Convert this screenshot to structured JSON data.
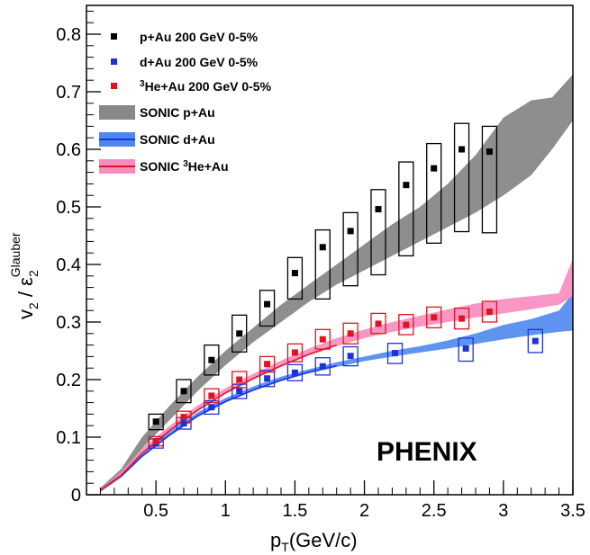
{
  "chart_data": {
    "type": "scatter",
    "title": "",
    "watermark": "PHENIX",
    "xlabel": {
      "main": "p",
      "sub": "T",
      "rest": "(GeV/c)"
    },
    "ylabel": {
      "v": "v",
      "vsub": "2",
      "sep": " / ",
      "eps": "ε",
      "epssub": "2",
      "epssup": "Glauber"
    },
    "xlim": [
      0,
      3.5
    ],
    "ylim": [
      0,
      0.85
    ],
    "xticks": [
      0.5,
      1,
      1.5,
      2,
      2.5,
      3,
      3.5
    ],
    "xtick_labels": [
      "0.5",
      "1",
      "1.5",
      "2",
      "2.5",
      "3",
      "3.5"
    ],
    "yticks": [
      0,
      0.1,
      0.2,
      0.3,
      0.4,
      0.5,
      0.6,
      0.7,
      0.8
    ],
    "ytick_labels": [
      "0",
      "0.1",
      "0.2",
      "0.3",
      "0.4",
      "0.5",
      "0.6",
      "0.7",
      "0.8"
    ],
    "legend_position": "top-left",
    "grid": false,
    "series": [
      {
        "name": "p+Au 200 GeV 0-5%",
        "color": "#000000",
        "x": [
          0.5,
          0.7,
          0.9,
          1.1,
          1.3,
          1.5,
          1.7,
          1.9,
          2.1,
          2.3,
          2.5,
          2.7,
          2.9
        ],
        "y": [
          0.127,
          0.18,
          0.234,
          0.28,
          0.331,
          0.385,
          0.43,
          0.458,
          0.496,
          0.538,
          0.567,
          0.6,
          0.596
        ],
        "sys_low": [
          0.113,
          0.16,
          0.208,
          0.248,
          0.293,
          0.34,
          0.34,
          0.363,
          0.382,
          0.415,
          0.437,
          0.457,
          0.455
        ],
        "sys_high": [
          0.14,
          0.2,
          0.26,
          0.312,
          0.355,
          0.412,
          0.46,
          0.49,
          0.53,
          0.578,
          0.61,
          0.645,
          0.64
        ]
      },
      {
        "name": "d+Au 200 GeV 0-5%",
        "color": "#1e32dc",
        "x": [
          0.5,
          0.7,
          0.9,
          1.1,
          1.3,
          1.5,
          1.7,
          1.9,
          2.22,
          2.73,
          3.23
        ],
        "y": [
          0.089,
          0.124,
          0.152,
          0.18,
          0.202,
          0.212,
          0.223,
          0.241,
          0.246,
          0.254,
          0.267
        ],
        "sys_low": [
          0.081,
          0.114,
          0.14,
          0.167,
          0.188,
          0.198,
          0.208,
          0.224,
          0.228,
          0.232,
          0.247
        ],
        "sys_high": [
          0.097,
          0.134,
          0.163,
          0.192,
          0.216,
          0.226,
          0.238,
          0.257,
          0.263,
          0.272,
          0.287
        ]
      },
      {
        "name": "³He+Au 200 GeV 0-5%",
        "legend_pre": "3",
        "legend_text": "He+Au 200 GeV 0-5%",
        "color": "#e1141e",
        "x": [
          0.5,
          0.7,
          0.9,
          1.1,
          1.3,
          1.5,
          1.7,
          1.9,
          2.1,
          2.3,
          2.5,
          2.7,
          2.9
        ],
        "y": [
          0.093,
          0.135,
          0.172,
          0.2,
          0.227,
          0.247,
          0.27,
          0.28,
          0.297,
          0.295,
          0.308,
          0.306,
          0.318
        ],
        "sys_low": [
          0.085,
          0.125,
          0.16,
          0.186,
          0.213,
          0.231,
          0.253,
          0.262,
          0.28,
          0.278,
          0.29,
          0.288,
          0.3
        ],
        "sys_high": [
          0.101,
          0.145,
          0.184,
          0.214,
          0.24,
          0.262,
          0.287,
          0.298,
          0.315,
          0.313,
          0.326,
          0.324,
          0.336
        ]
      }
    ],
    "models": [
      {
        "name": "SONIC p+Au",
        "fill": "#888888",
        "line": "#555555",
        "x": [
          0.1,
          0.25,
          0.4,
          0.6,
          0.8,
          1.0,
          1.2,
          1.4,
          1.6,
          1.8,
          2.0,
          2.2,
          2.4,
          2.6,
          2.8,
          3.0,
          3.2,
          3.35,
          3.5
        ],
        "low": [
          0.008,
          0.035,
          0.08,
          0.13,
          0.18,
          0.225,
          0.265,
          0.3,
          0.335,
          0.365,
          0.39,
          0.415,
          0.44,
          0.465,
          0.49,
          0.52,
          0.555,
          0.6,
          0.65
        ],
        "high": [
          0.012,
          0.045,
          0.1,
          0.155,
          0.205,
          0.25,
          0.29,
          0.33,
          0.365,
          0.4,
          0.435,
          0.47,
          0.5,
          0.54,
          0.59,
          0.655,
          0.685,
          0.69,
          0.73
        ]
      },
      {
        "name": "SONIC d+Au",
        "fill": "#4d88ee",
        "line": "#1e32dc",
        "x": [
          0.1,
          0.25,
          0.4,
          0.6,
          0.8,
          1.0,
          1.2,
          1.4,
          1.6,
          1.8,
          2.0,
          2.2,
          2.4,
          2.6,
          2.8,
          3.0,
          3.2,
          3.4,
          3.5
        ],
        "low": [
          0.005,
          0.03,
          0.065,
          0.102,
          0.135,
          0.16,
          0.18,
          0.197,
          0.211,
          0.222,
          0.232,
          0.24,
          0.247,
          0.254,
          0.262,
          0.27,
          0.277,
          0.283,
          0.285
        ],
        "high": [
          0.008,
          0.036,
          0.073,
          0.11,
          0.143,
          0.168,
          0.188,
          0.205,
          0.218,
          0.23,
          0.24,
          0.25,
          0.258,
          0.268,
          0.28,
          0.295,
          0.305,
          0.32,
          0.35
        ]
      },
      {
        "name": "SONIC ³He+Au",
        "legend_pre": "SONIC ",
        "legend_sup": "3",
        "legend_text": "He+Au",
        "fill": "#f78cc0",
        "line": "#e1141e",
        "x": [
          0.1,
          0.25,
          0.4,
          0.6,
          0.8,
          1.0,
          1.2,
          1.4,
          1.6,
          1.8,
          2.0,
          2.2,
          2.4,
          2.6,
          2.8,
          3.0,
          3.2,
          3.4,
          3.5
        ],
        "low": [
          0.006,
          0.032,
          0.07,
          0.11,
          0.145,
          0.175,
          0.2,
          0.222,
          0.242,
          0.258,
          0.272,
          0.283,
          0.292,
          0.3,
          0.308,
          0.315,
          0.322,
          0.33,
          0.345
        ],
        "high": [
          0.01,
          0.04,
          0.08,
          0.12,
          0.155,
          0.185,
          0.21,
          0.233,
          0.254,
          0.272,
          0.287,
          0.3,
          0.311,
          0.322,
          0.332,
          0.34,
          0.345,
          0.35,
          0.41
        ]
      }
    ]
  }
}
